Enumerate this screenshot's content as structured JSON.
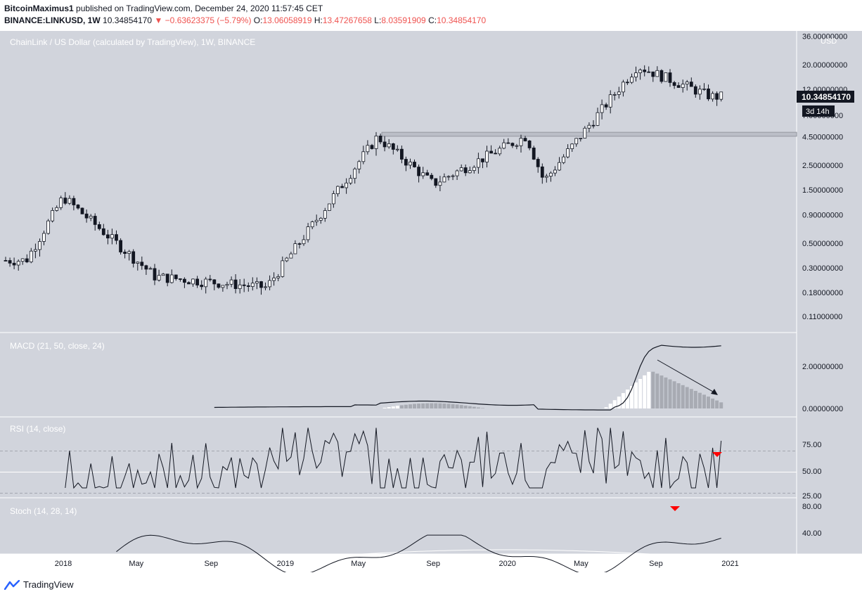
{
  "header": {
    "author": "BitcoinMaximus1",
    "published_text": "published on TradingView.com, December 24, 2020 11:57:45 CET",
    "symbol": "BINANCE:LINKUSD, 1W",
    "last": "10.34854170",
    "change": "−0.63623375 (−5.79%)",
    "o_label": "O:",
    "o_value": "13.06058919",
    "h_label": "H:",
    "h_value": "13.47267658",
    "l_label": "L:",
    "l_value": "8.03591909",
    "c_label": "C:",
    "c_value": "10.34854170"
  },
  "colors": {
    "pane_bg": "#d1d4dc",
    "candle_up": "#ffffff",
    "candle_down": "#131722",
    "resistance": "#b2b5be",
    "hist_gray": "#a8abb3",
    "signal_red": "#ff0000"
  },
  "footer": {
    "brand": "TradingView"
  },
  "chart_data": [
    {
      "type": "candlestick",
      "title": "ChainLink / US Dollar (calculated by TradingView), 1W, BINANCE",
      "y_scale": "log",
      "currency": "USD",
      "y_ticks": [
        "36.00000000",
        "20.00000000",
        "12.00000000",
        "7.00000000",
        "4.50000000",
        "2.50000000",
        "1.50000000",
        "0.90000000",
        "0.50000000",
        "0.30000000",
        "0.18000000",
        "0.11000000"
      ],
      "x_ticks": [
        "2018",
        "May",
        "Sep",
        "2019",
        "May",
        "Sep",
        "2020",
        "May",
        "Sep",
        "2021"
      ],
      "last_price_label": "10.34854170",
      "countdown_label": "3d 14h",
      "resistance_zone": [
        4.55,
        4.95
      ],
      "key_points": [
        {
          "date": "2017-11",
          "price": 0.35
        },
        {
          "date": "2018-01",
          "price": 1.3
        },
        {
          "date": "2018-06",
          "price": 0.25
        },
        {
          "date": "2018-12",
          "price": 0.2
        },
        {
          "date": "2019-06",
          "price": 4.5
        },
        {
          "date": "2019-09",
          "price": 1.7
        },
        {
          "date": "2020-02",
          "price": 4.6
        },
        {
          "date": "2020-03",
          "price": 1.8
        },
        {
          "date": "2020-08",
          "price": 19.5
        },
        {
          "date": "2020-12",
          "price": 10.35
        }
      ]
    },
    {
      "type": "line",
      "title": "MACD (21, 50, close, 24)",
      "y_ticks": [
        "2.00000000",
        "0.00000000"
      ],
      "macd_start": "2018-09",
      "macd_peak": 3.0,
      "hist_peak": 1.8
    },
    {
      "type": "line",
      "title": "RSI (14, close)",
      "y_ticks": [
        "75.00",
        "50.00",
        "25.00"
      ],
      "bands": [
        70,
        50,
        30
      ]
    },
    {
      "type": "line",
      "title": "Stoch (14, 28, 14)",
      "y_ticks": [
        "80.00",
        "40.00"
      ]
    }
  ]
}
